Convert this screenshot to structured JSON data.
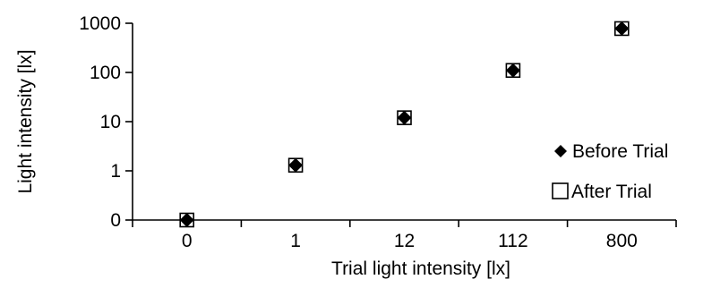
{
  "chart_data": {
    "type": "scatter",
    "title": "",
    "xlabel": "Trial light intensity [lx]",
    "ylabel": "Light intensity [lx]",
    "x_scale": "categorical",
    "y_scale": "log (with 0 at base)",
    "categories": [
      "0",
      "1",
      "12",
      "112",
      "800"
    ],
    "y_ticks": [
      "0",
      "1",
      "10",
      "100",
      "1000"
    ],
    "grid": false,
    "legend_position": "right",
    "series": [
      {
        "name": "Before Trial",
        "marker": "filled-diamond",
        "color": "#000000",
        "values": [
          0,
          1.3,
          12,
          110,
          780
        ]
      },
      {
        "name": "After Trial",
        "marker": "open-square",
        "color": "#000000",
        "values": [
          0,
          1.3,
          12,
          110,
          780
        ]
      }
    ]
  }
}
